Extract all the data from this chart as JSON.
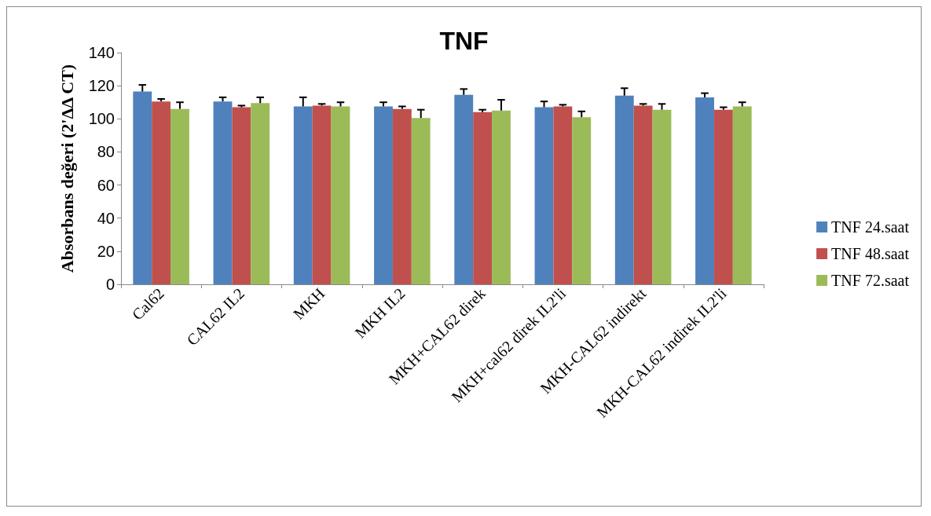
{
  "chart_data": {
    "type": "bar",
    "title": "TNF",
    "ylabel": "Absorbans değeri (2'ΔΔ CT)",
    "categories": [
      "Cal62",
      "CAL62 IL2",
      "MKH",
      "MKH IL2",
      "MKH+CAL62 direk",
      "MKH+cal62 direk IL2'li",
      "MKH-CAL62 indirekt",
      "MKH-CAL62 indirek IL2'li"
    ],
    "series": [
      {
        "name": "TNF 24.saat",
        "color": "#4f81bd",
        "values": [
          116.5,
          110.5,
          107.5,
          107.5,
          114.5,
          107,
          114,
          113
        ],
        "errors": [
          [
            116.5,
            120.5
          ],
          [
            110.5,
            113
          ],
          [
            107.5,
            113
          ],
          [
            107.5,
            110
          ],
          [
            114.5,
            118
          ],
          [
            107,
            110.5
          ],
          [
            114,
            118.5
          ],
          [
            113,
            115.5
          ]
        ]
      },
      {
        "name": "TNF 48.saat",
        "color": "#c0504d",
        "values": [
          110.5,
          107,
          108,
          106,
          104,
          107.5,
          108,
          105.5
        ],
        "errors": [
          [
            110.5,
            112
          ],
          [
            107,
            108
          ],
          [
            108,
            109
          ],
          [
            106,
            107.5
          ],
          [
            104,
            105.5
          ],
          [
            107.5,
            108.5
          ],
          [
            108,
            109
          ],
          [
            105.5,
            107
          ]
        ]
      },
      {
        "name": "TNF 72.saat",
        "color": "#9bbb59",
        "values": [
          106,
          109.5,
          107.5,
          100.5,
          105,
          101,
          105.5,
          107.5
        ],
        "errors": [
          [
            106,
            110
          ],
          [
            109.5,
            113
          ],
          [
            107.5,
            110
          ],
          [
            100.5,
            105.5
          ],
          [
            105,
            111.5
          ],
          [
            101,
            104.5
          ],
          [
            105.5,
            109
          ],
          [
            107.5,
            110
          ]
        ]
      }
    ],
    "ylim": [
      0,
      140
    ],
    "yticks": [
      0,
      20,
      40,
      60,
      80,
      100,
      120,
      140
    ],
    "grid": false,
    "legend": "right"
  }
}
